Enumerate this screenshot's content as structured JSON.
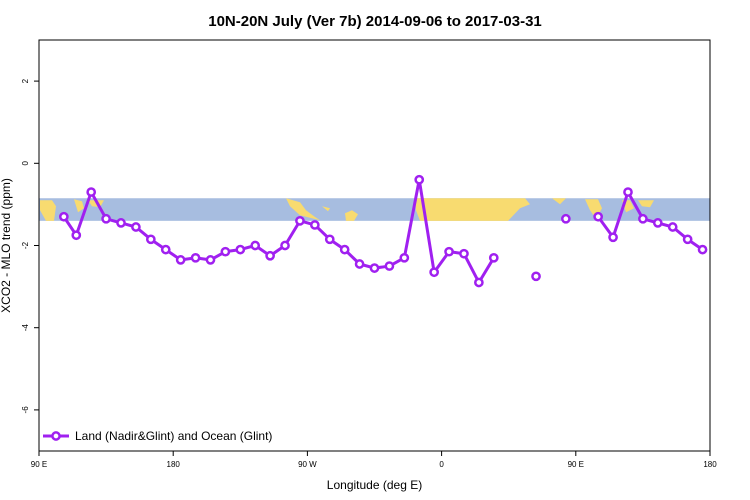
{
  "chart_data": {
    "type": "line",
    "title": "10N-20N July (Ver 7b)   2014-09-06 to 2017-03-31",
    "xlabel": "Longitude (deg E)",
    "ylabel": "XCO2 - MLO trend (ppm)",
    "xlim": [
      -90,
      180
    ],
    "ylim": [
      -7,
      3
    ],
    "xticks": [
      {
        "value": -90,
        "label": "90 E"
      },
      {
        "value": -36,
        "label": "180"
      },
      {
        "value": 18,
        "label": "90 W"
      },
      {
        "value": 72,
        "label": "0"
      },
      {
        "value": 126,
        "label": "90 E"
      },
      {
        "value": 180,
        "label": "180"
      }
    ],
    "yticks": [
      {
        "value": 2,
        "label": "2"
      },
      {
        "value": 0,
        "label": "0"
      },
      {
        "value": -2,
        "label": "-2"
      },
      {
        "value": -4,
        "label": "-4"
      },
      {
        "value": -6,
        "label": "-6"
      }
    ],
    "map_band": {
      "ymin": -1.4,
      "ymax": -0.85,
      "ocean_color": "#a7bde0",
      "land_color": "#f8db70"
    },
    "series": [
      {
        "name": "Land (Nadir&Glint) and Ocean (Glint)",
        "color": "#a020f0",
        "segments": [
          [
            [
              -80,
              -1.3
            ],
            [
              -75,
              -1.75
            ],
            [
              -69,
              -0.7
            ],
            [
              -63,
              -1.35
            ],
            [
              -57,
              -1.45
            ],
            [
              -51,
              -1.55
            ],
            [
              -45,
              -1.85
            ],
            [
              -39,
              -2.1
            ],
            [
              -33,
              -2.35
            ],
            [
              -27,
              -2.3
            ],
            [
              -21,
              -2.35
            ],
            [
              -15,
              -2.15
            ],
            [
              -9,
              -2.1
            ],
            [
              -3,
              -2.0
            ],
            [
              3,
              -2.25
            ],
            [
              9,
              -2.0
            ],
            [
              15,
              -1.4
            ],
            [
              21,
              -1.5
            ],
            [
              27,
              -1.85
            ],
            [
              33,
              -2.1
            ],
            [
              39,
              -2.45
            ],
            [
              45,
              -2.55
            ],
            [
              51,
              -2.5
            ],
            [
              57,
              -2.3
            ],
            [
              63,
              -0.4
            ],
            [
              69,
              -2.65
            ],
            [
              75,
              -2.15
            ],
            [
              81,
              -2.2
            ],
            [
              87,
              -2.9
            ],
            [
              93,
              -2.3
            ]
          ],
          [
            [
              110,
              -2.75
            ]
          ],
          [
            [
              122,
              -1.35
            ]
          ],
          [
            [
              135,
              -1.3
            ],
            [
              141,
              -1.8
            ],
            [
              147,
              -0.7
            ],
            [
              153,
              -1.35
            ],
            [
              159,
              -1.45
            ],
            [
              165,
              -1.55
            ],
            [
              171,
              -1.85
            ],
            [
              177,
              -2.1
            ]
          ]
        ]
      }
    ],
    "legend": {
      "position": "bottom-left"
    },
    "grid": false
  }
}
